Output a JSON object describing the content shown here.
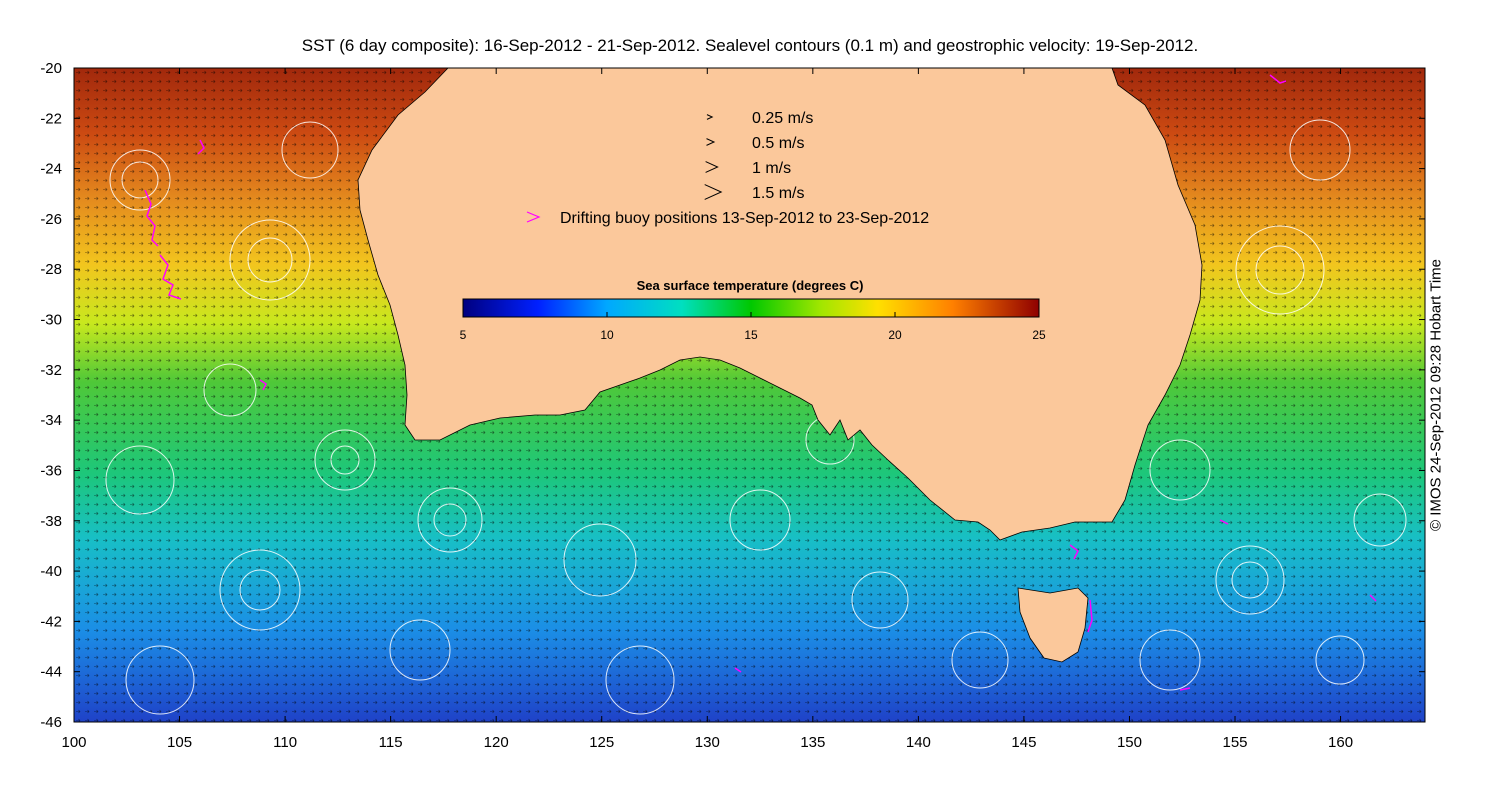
{
  "title": "SST (6 day composite): 16-Sep-2012 - 21-Sep-2012. Sealevel contours (0.1 m) and geostrophic velocity: 19-Sep-2012.",
  "credit": "© IMOS 24-Sep-2012 09:28 Hobart Time",
  "axes": {
    "x_ticks": [
      "100",
      "105",
      "110",
      "115",
      "120",
      "125",
      "130",
      "135",
      "140",
      "145",
      "150",
      "155",
      "160"
    ],
    "y_ticks": [
      "-20",
      "-22",
      "-24",
      "-26",
      "-28",
      "-30",
      "-32",
      "-34",
      "-36",
      "-38",
      "-40",
      "-42",
      "-44",
      "-46"
    ],
    "xlim": [
      100,
      164
    ],
    "ylim": [
      -46,
      -20
    ]
  },
  "velocity_legend": [
    {
      "label": "0.25 m/s",
      "speed": 0.25
    },
    {
      "label": "0.5 m/s",
      "speed": 0.5
    },
    {
      "label": "1 m/s",
      "speed": 1
    },
    {
      "label": "1.5 m/s",
      "speed": 1.5
    }
  ],
  "buoy_legend": {
    "label": "Drifting buoy positions 13-Sep-2012 to 23-Sep-2012",
    "color": "#ff00ff"
  },
  "colorbar": {
    "title": "Sea surface temperature (degrees C)",
    "ticks": [
      "5",
      "10",
      "15",
      "20",
      "25"
    ],
    "range": [
      5,
      25
    ]
  },
  "colors": {
    "land": "#fbc89b",
    "contour": "#ffffff",
    "vector": "#000000",
    "buoy": "#ff00ff"
  }
}
